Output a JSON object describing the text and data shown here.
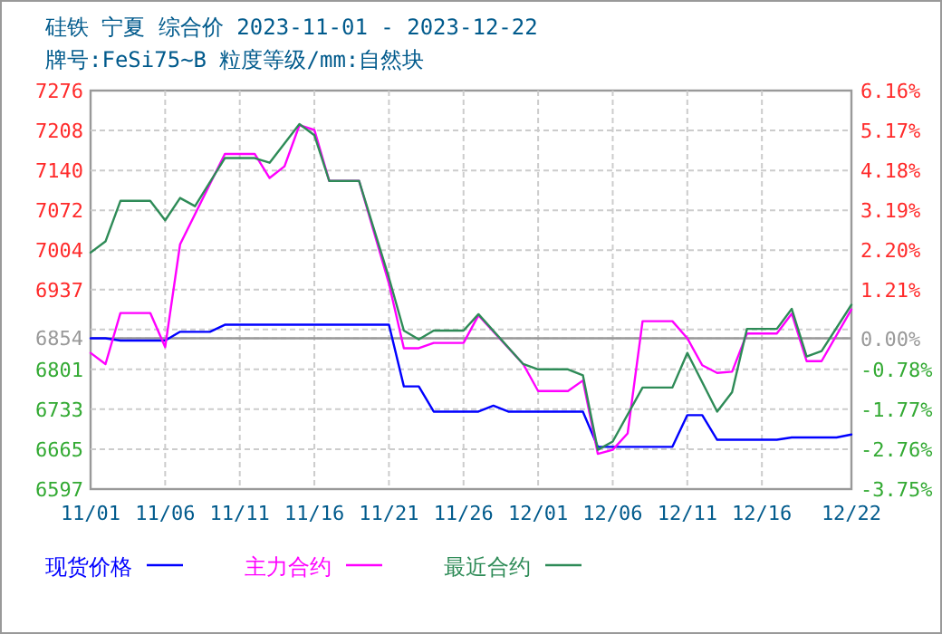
{
  "chart_data": {
    "type": "line",
    "title": "硅铁 宁夏 综合价 2023-11-01 - 2023-12-22",
    "subtitle": "牌号:FeSi75~B 粒度等级/mm:自然块",
    "xlim": [
      "--11-01",
      "--12-22"
    ],
    "xticks": [
      {
        "value": "--11-01",
        "label": "11/01"
      },
      {
        "value": "--11-06",
        "label": "11/06"
      },
      {
        "value": "--11-11",
        "label": "11/11"
      },
      {
        "value": "--11-16",
        "label": "11/16"
      },
      {
        "value": "--11-21",
        "label": "11/21"
      },
      {
        "value": "--11-26",
        "label": "11/26"
      },
      {
        "value": "--12-01",
        "label": "12/01"
      },
      {
        "value": "--12-06",
        "label": "12/06"
      },
      {
        "value": "--12-11",
        "label": "12/11"
      },
      {
        "value": "--12-16",
        "label": "12/16"
      },
      {
        "value": "--12-22",
        "label": "12/22"
      }
    ],
    "ylim": [
      6597,
      7276
    ],
    "yticks": [
      6597,
      6665,
      6733,
      6801,
      6854,
      {
        "value": 6869,
        "label": null
      },
      6937,
      7004,
      7072,
      7140,
      7208,
      7276
    ],
    "y2lim": [
      -3.75,
      6.16
    ],
    "y2ticks": [
      {
        "value": -3.75,
        "label": "-3.75%"
      },
      {
        "value": -2.76,
        "label": "-2.76%"
      },
      {
        "value": -1.77,
        "label": "-1.77%"
      },
      {
        "value": -0.78,
        "label": "-0.78%"
      },
      {
        "value": 0,
        "label": "0.00%"
      },
      {
        "value": 1.21,
        "label": "1.21%"
      },
      {
        "value": 2.2,
        "label": "2.20%"
      },
      {
        "value": 3.19,
        "label": "3.19%"
      },
      {
        "value": 4.18,
        "label": "4.18%"
      },
      {
        "value": 5.17,
        "label": "5.17%"
      },
      {
        "value": 6.16,
        "label": "6.16%"
      }
    ],
    "ref_lines": [
      {
        "axis": "y",
        "value": 6854,
        "color": "#999999"
      }
    ],
    "grid": true,
    "legend": "bottom",
    "line_style": "solid",
    "series": [
      {
        "name": "现货价格",
        "color": "#0000ff",
        "x": [
          "--11-01",
          "--11-02",
          "--11-03",
          "--11-06",
          "--11-07",
          "--11-09",
          "--11-10",
          "--11-21",
          "--11-22",
          "--11-23",
          "--11-24",
          "--11-27",
          "--11-28",
          "--11-29",
          "--12-04",
          "--12-05",
          "--12-10",
          "--12-11",
          "--12-12",
          "--12-13",
          "--12-17",
          "--12-18",
          "--12-21",
          "--12-22"
        ],
        "values": [
          6854,
          6854,
          6850,
          6850,
          6865,
          6865,
          6877,
          6877,
          6772,
          6772,
          6729,
          6729,
          6739,
          6729,
          6729,
          6669,
          6669,
          6723,
          6723,
          6681,
          6681,
          6685,
          6685,
          6690
        ]
      },
      {
        "name": "主力合约",
        "color": "#ff00ff",
        "x": [
          "--11-01",
          "--11-02",
          "--11-03",
          "--11-05",
          "--11-06",
          "--11-07",
          "--11-10",
          "--11-12",
          "--11-13",
          "--11-14",
          "--11-15",
          "--11-16",
          "--11-17",
          "--11-19",
          "--11-21",
          "--11-22",
          "--11-23",
          "--11-24",
          "--11-26",
          "--11-27",
          "--11-30",
          "--12-01",
          "--12-03",
          "--12-04",
          "--12-05",
          "--12-06",
          "--12-07",
          "--12-08",
          "--12-10",
          "--12-11",
          "--12-12",
          "--12-13",
          "--12-14",
          "--12-15",
          "--12-17",
          "--12-18",
          "--12-19",
          "--12-20",
          "--12-22"
        ],
        "values": [
          6829,
          6810,
          6897,
          6897,
          6839,
          7014,
          7168,
          7168,
          7127,
          7147,
          7217,
          7209,
          7122,
          7122,
          6947,
          6837,
          6837,
          6846,
          6846,
          6893,
          6810,
          6764,
          6764,
          6782,
          6657,
          6664,
          6692,
          6883,
          6883,
          6854,
          6808,
          6795,
          6797,
          6862,
          6862,
          6896,
          6815,
          6815,
          6903
        ]
      },
      {
        "name": "最近合约",
        "color": "#2e8b57",
        "x": [
          "--11-01",
          "--11-02",
          "--11-03",
          "--11-05",
          "--11-06",
          "--11-07",
          "--11-08",
          "--11-10",
          "--11-12",
          "--11-13",
          "--11-15",
          "--11-16",
          "--11-17",
          "--11-19",
          "--11-21",
          "--11-22",
          "--11-23",
          "--11-24",
          "--11-26",
          "--11-27",
          "--11-30",
          "--12-01",
          "--12-03",
          "--12-04",
          "--12-05",
          "--12-06",
          "--12-08",
          "--12-10",
          "--12-11",
          "--12-13",
          "--12-14",
          "--12-15",
          "--12-17",
          "--12-18",
          "--12-19",
          "--12-20",
          "--12-22"
        ],
        "values": [
          7000,
          7019,
          7088,
          7088,
          7055,
          7093,
          7079,
          7161,
          7161,
          7153,
          7219,
          7200,
          7122,
          7122,
          6957,
          6867,
          6852,
          6867,
          6867,
          6895,
          6810,
          6801,
          6801,
          6791,
          6664,
          6678,
          6770,
          6770,
          6829,
          6729,
          6762,
          6870,
          6870,
          6904,
          6823,
          6832,
          6911
        ]
      }
    ]
  }
}
